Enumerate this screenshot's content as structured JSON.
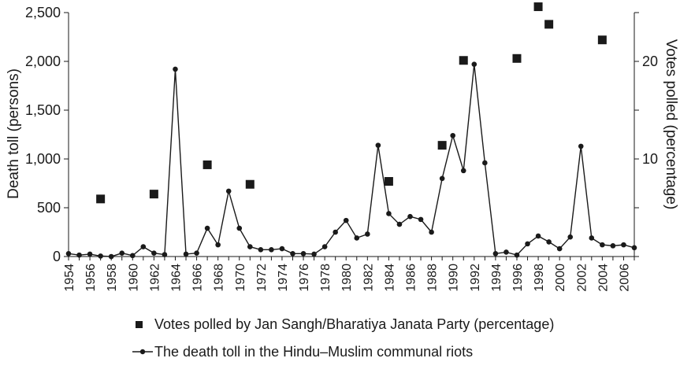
{
  "chart_data": {
    "type": "line",
    "left_axis": {
      "label": "Death toll (persons)",
      "range": [
        0,
        2500
      ],
      "ticks": [
        0,
        500,
        1000,
        1500,
        2000,
        2500
      ],
      "tick_labels": [
        "0",
        "500",
        "1,000",
        "1,500",
        "2,000",
        "2,500"
      ]
    },
    "right_axis": {
      "label": "Votes polled (percentage)",
      "range": [
        0,
        25
      ],
      "ticks": [
        0,
        5,
        10,
        15,
        20,
        25
      ],
      "tick_labels": [
        "",
        "",
        "10",
        "",
        "20",
        ""
      ]
    },
    "x_axis": {
      "range": [
        1954,
        2007
      ],
      "tick_labels": [
        "1954",
        "1956",
        "1958",
        "1960",
        "1962",
        "1964",
        "1966",
        "1968",
        "1970",
        "1972",
        "1974",
        "1976",
        "1978",
        "1980",
        "1982",
        "1984",
        "1986",
        "1988",
        "1990",
        "1992",
        "1994",
        "1996",
        "1998",
        "2000",
        "2002",
        "2004",
        "2006"
      ]
    },
    "series": [
      {
        "name": "The death toll in the Hindu–Muslim communal riots",
        "axis": "left",
        "marker": "circle",
        "color": "#1a1a1a",
        "x": [
          1954,
          1955,
          1956,
          1957,
          1958,
          1959,
          1960,
          1961,
          1962,
          1963,
          1964,
          1965,
          1966,
          1967,
          1968,
          1969,
          1970,
          1971,
          1972,
          1973,
          1974,
          1975,
          1976,
          1977,
          1978,
          1979,
          1980,
          1981,
          1982,
          1983,
          1984,
          1985,
          1986,
          1987,
          1988,
          1989,
          1990,
          1991,
          1992,
          1993,
          1994,
          1995,
          1996,
          1997,
          1998,
          1999,
          2000,
          2001,
          2002,
          2003,
          2004,
          2005,
          2006,
          2007
        ],
        "y": [
          30,
          15,
          25,
          5,
          0,
          35,
          10,
          100,
          35,
          20,
          1920,
          25,
          35,
          290,
          120,
          670,
          290,
          100,
          70,
          70,
          80,
          30,
          30,
          25,
          100,
          250,
          370,
          190,
          230,
          1140,
          440,
          330,
          410,
          380,
          250,
          800,
          1240,
          880,
          1970,
          960,
          30,
          45,
          15,
          130,
          210,
          150,
          80,
          200,
          1130,
          190,
          120,
          110,
          120,
          90
        ]
      },
      {
        "name": "Votes polled by Jan Sangh/Bharatiya Janata Party (percentage)",
        "axis": "right",
        "marker": "square",
        "color": "#1a1a1a",
        "x": [
          1957,
          1962,
          1967,
          1971,
          1984,
          1989,
          1991,
          1996,
          1998,
          1999,
          2004
        ],
        "y": [
          5.9,
          6.4,
          9.4,
          7.4,
          7.7,
          11.4,
          20.1,
          20.3,
          25.6,
          23.8,
          22.2
        ]
      }
    ],
    "legend": {
      "placement": "bottom",
      "items": [
        "Votes polled by Jan Sangh/Bharatiya Janata Party (percentage)",
        "The death toll in the Hindu–Muslim communal riots"
      ]
    },
    "grid": false
  }
}
